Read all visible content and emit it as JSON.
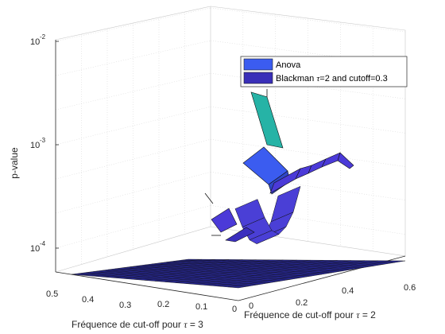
{
  "chart_data": {
    "type": "surface-3d",
    "title": "",
    "xlabel_prefix": "Fréquence de cut-off pour ",
    "xlabel_sym": "τ",
    "xlabel_suffix": " = 3",
    "ylabel_prefix": "Fréquence de cut-off pour ",
    "ylabel_sym": "τ",
    "ylabel_suffix": " = 2",
    "zlabel": "p-value",
    "zscale": "log",
    "x_ticks": [
      "0.5",
      "0.4",
      "0.3",
      "0.2",
      "0.1",
      "0"
    ],
    "y_ticks": [
      "0",
      "0.2",
      "0.4",
      "0.6"
    ],
    "z_ticks": [
      {
        "base": "10",
        "exp": "-2"
      },
      {
        "base": "10",
        "exp": "-3"
      },
      {
        "base": "10",
        "exp": "-4"
      }
    ],
    "grid": true,
    "legend": {
      "placement": "top-right",
      "entries": [
        {
          "label": "Anova",
          "color": "#3b5cf0"
        },
        {
          "label_prefix": "Blackman ",
          "label_sym": "τ",
          "label_suffix": "=2 and cutoff=0.3",
          "color": "#3a2fb8"
        }
      ]
    },
    "series": [
      {
        "name": "Anova",
        "note": "flat surface at the bottom of the z-range",
        "color": "#26268a"
      },
      {
        "name": "Blackman",
        "note": "stepped p-value profile, peak near cutoff 0.3",
        "points": [
          {
            "step": 1,
            "p": 0.0029
          },
          {
            "step": 2,
            "p": 0.00095
          },
          {
            "step": 3,
            "p": 0.00032
          },
          {
            "step": 4,
            "p": 0.00018
          },
          {
            "step": 5,
            "p": 0.00013
          },
          {
            "step": 6,
            "p": 0.00011
          },
          {
            "step": 7,
            "p": 0.00012
          },
          {
            "step": 8,
            "p": 0.00016
          },
          {
            "step": 9,
            "p": 0.00024
          },
          {
            "step": 10,
            "p": 0.00036
          },
          {
            "step": 11,
            "p": 0.00048
          },
          {
            "step": 12,
            "p": 0.00055
          }
        ],
        "top_color": "#26b3a6",
        "mid_color": "#3b5cf0",
        "low_color": "#4b3ad8"
      }
    ]
  }
}
